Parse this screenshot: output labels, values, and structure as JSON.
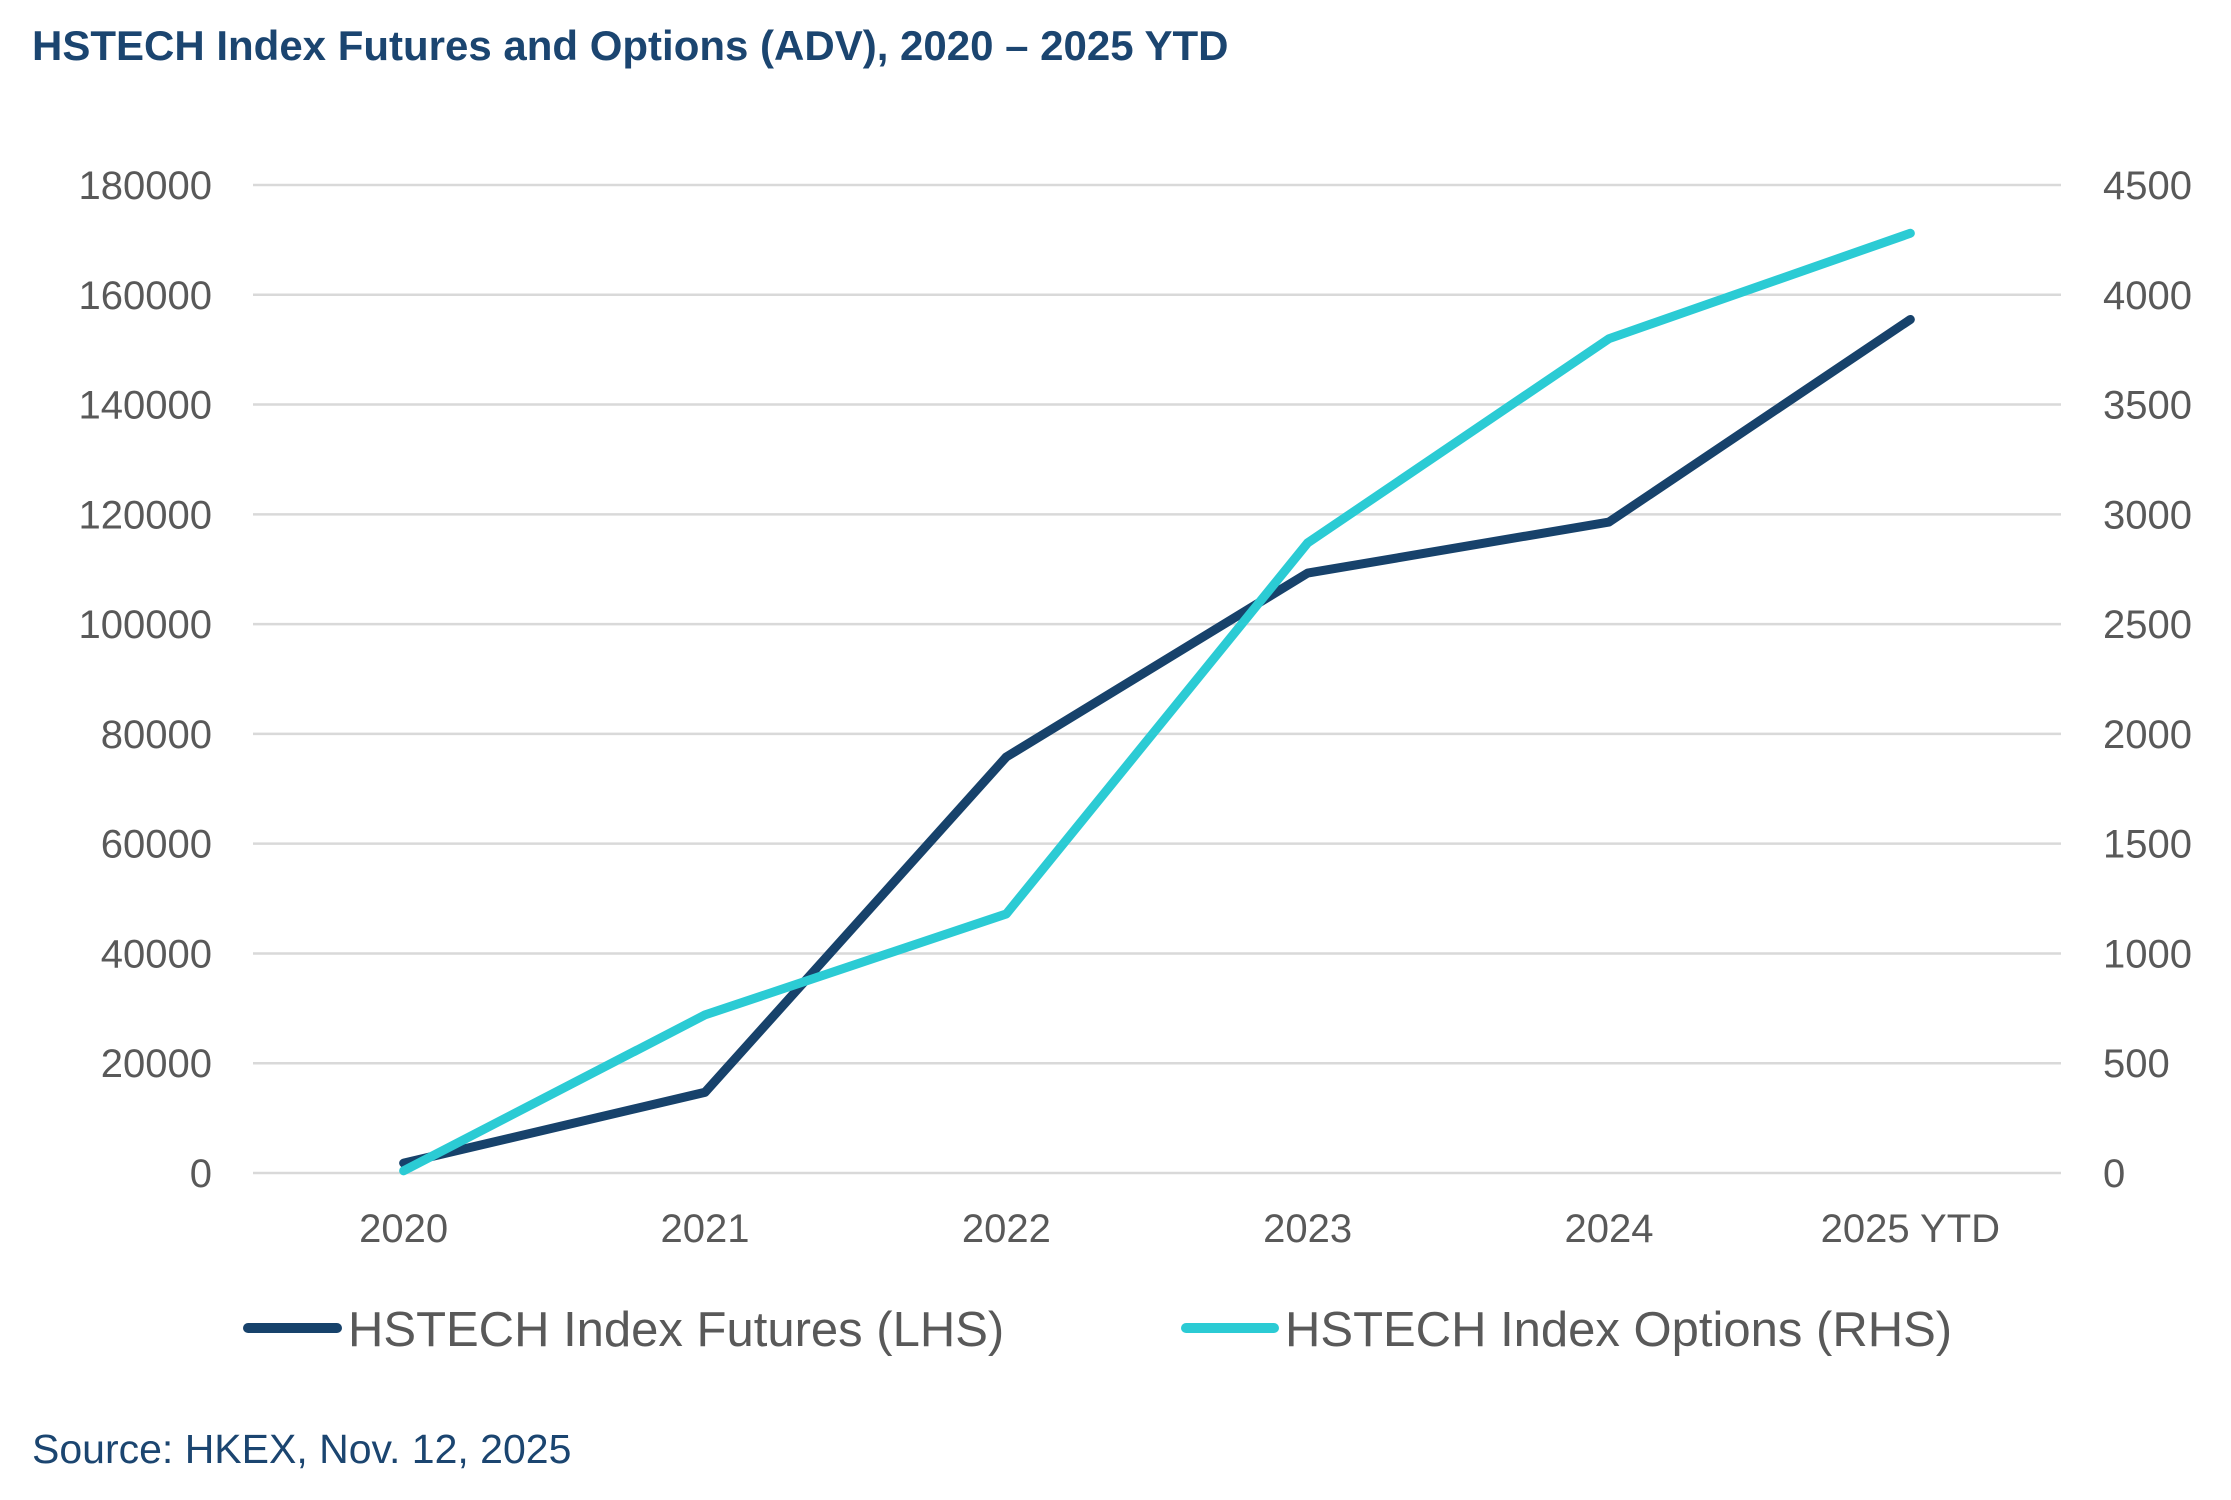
{
  "source": "Source: HKEX, Nov. 12, 2025",
  "colors": {
    "title": "#1B4570",
    "futures": "#17426B",
    "options": "#2BCBD4",
    "axis_text": "#595959",
    "grid": "#D9D9D9"
  },
  "chart_data": {
    "type": "line",
    "title": "HSTECH Index Futures and Options (ADV), 2020 – 2025 YTD",
    "xlabel": "",
    "ylabel": "",
    "ylabel_right": "",
    "categories": [
      "2020",
      "2021",
      "2022",
      "2023",
      "2024",
      "2025 YTD"
    ],
    "y_left": {
      "range": [
        0,
        180000
      ],
      "ticks": [
        0,
        20000,
        40000,
        60000,
        80000,
        100000,
        120000,
        140000,
        160000,
        180000
      ]
    },
    "y_right": {
      "range": [
        0,
        4500
      ],
      "ticks": [
        0,
        500,
        1000,
        1500,
        2000,
        2500,
        3000,
        3500,
        4000,
        4500
      ]
    },
    "grid": true,
    "legend_position": "bottom",
    "series": [
      {
        "name": "HSTECH Index Futures (LHS)",
        "axis": "left",
        "color": "#17426B",
        "values": [
          1800,
          14700,
          75800,
          109300,
          118600,
          155500
        ]
      },
      {
        "name": "HSTECH Index Options (RHS)",
        "axis": "right",
        "color": "#2BCBD4",
        "values": [
          10,
          720,
          1180,
          2870,
          3800,
          4280
        ]
      }
    ]
  }
}
